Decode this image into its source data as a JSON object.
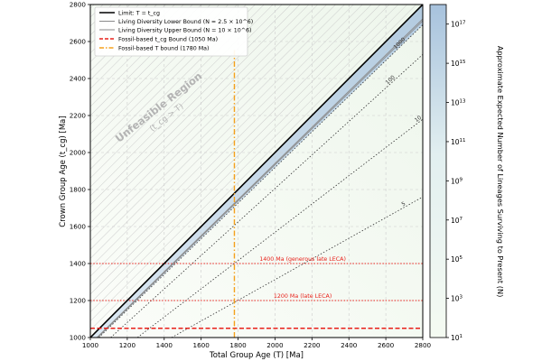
{
  "chart_data": {
    "type": "line",
    "xlabel": "Total Group Age (T) [Ma]",
    "ylabel": "Crown Group Age (t_cg) [Ma]",
    "xlim": [
      1000,
      2800
    ],
    "ylim": [
      1000,
      2800
    ],
    "xticks": [
      1000,
      1200,
      1400,
      1600,
      1800,
      2000,
      2200,
      2400,
      2600,
      2800
    ],
    "yticks": [
      1000,
      1200,
      1400,
      1600,
      1800,
      2000,
      2200,
      2400,
      2600,
      2800
    ],
    "grid": true,
    "legend_position": "top-left",
    "legend": [
      {
        "label": "Limit: T = t_cg",
        "style": "solid",
        "color": "#000000"
      },
      {
        "label": "Living Diversity Lower Bound (N = 2.5 × 10^6)",
        "style": "solid",
        "color": "#8a8a8a"
      },
      {
        "label": "Living Diversity Upper Bound (N = 10 × 10^6)",
        "style": "solid",
        "color": "#8a8a8a"
      },
      {
        "label": "Fossil-based t_cg Bound (1050 Ma)",
        "style": "dashed",
        "color": "#e8201a"
      },
      {
        "label": "Fossil-based T bound (1780 Ma)",
        "style": "dashdot",
        "color": "#f5a01a"
      }
    ],
    "series": [
      {
        "name": "Limit: T = t_cg",
        "x": [
          1000,
          2800
        ],
        "y": [
          1000,
          2800
        ]
      },
      {
        "name": "Living Diversity Lower Bound",
        "x": [
          1040,
          2800
        ],
        "y": [
          1000,
          2712
        ]
      },
      {
        "name": "Living Diversity Upper Bound",
        "x": [
          1036,
          2800
        ],
        "y": [
          1000,
          2722
        ]
      },
      {
        "name": "Fossil-based t_cg Bound (1050 Ma)",
        "x": [
          1000,
          2800
        ],
        "y": [
          1050,
          1050
        ]
      },
      {
        "name": "Fossil-based T bound (1780 Ma)",
        "x": [
          1780,
          1780
        ],
        "y": [
          1000,
          2560
        ]
      }
    ],
    "contours": [
      {
        "label": "1000",
        "x": [
          1046,
          2800
        ],
        "y": [
          1000,
          2690
        ]
      },
      {
        "label": "100",
        "x": [
          1110,
          2800
        ],
        "y": [
          1000,
          2530
        ]
      },
      {
        "label": "10",
        "x": [
          1255,
          2800
        ],
        "y": [
          1000,
          2180
        ]
      },
      {
        "label": "5",
        "x": [
          1440,
          2800
        ],
        "y": [
          1000,
          1760
        ]
      }
    ],
    "reference_lines": [
      {
        "label": "1400 Ma (generous late LECA)",
        "y": 1400,
        "color": "#e8201a"
      },
      {
        "label": "1200 Ma (late LECA)",
        "y": 1200,
        "color": "#e8201a"
      }
    ],
    "region_annotation": {
      "title": "Unfeasible Region",
      "subtitle": "(t_cg > T)"
    },
    "colorbar": {
      "label": "Approximate Expected Number of Lineages Surviving to Present (N)",
      "scale": "log",
      "range_exponents": [
        1,
        18
      ],
      "tick_labels": [
        "10^1",
        "10^3",
        "10^5",
        "10^7",
        "10^9",
        "10^11",
        "10^13",
        "10^15",
        "10^17"
      ],
      "color_low": "#f5fbf2",
      "color_high": "#a7c2dd"
    }
  }
}
